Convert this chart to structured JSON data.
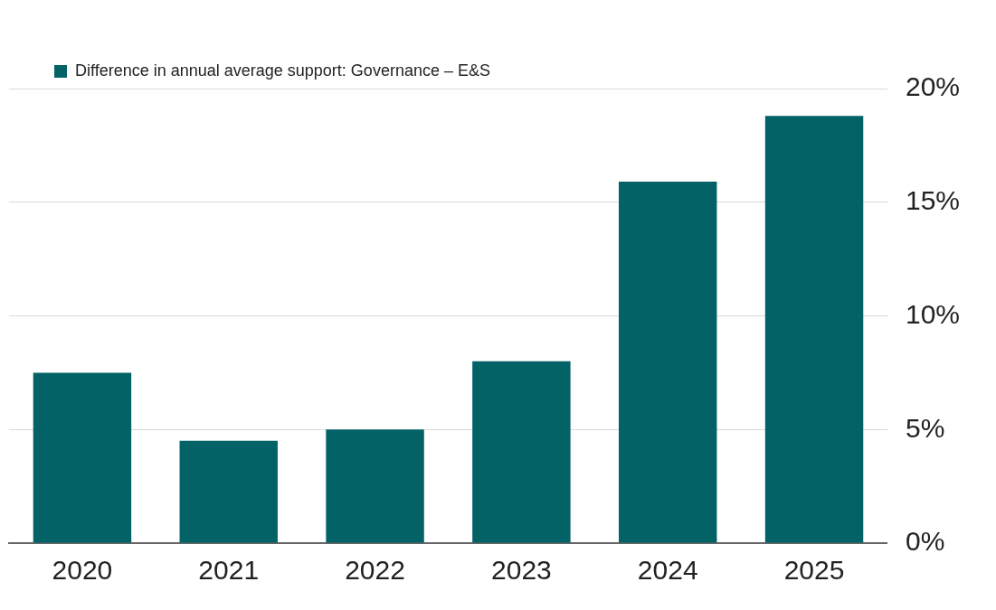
{
  "chart_data": {
    "type": "bar",
    "categories": [
      "2020",
      "2021",
      "2022",
      "2023",
      "2024",
      "2025"
    ],
    "series": [
      {
        "name": "Difference in annual average support: Governance – E&S",
        "color": "#026266",
        "values": [
          7.5,
          4.5,
          5.0,
          8.0,
          15.9,
          18.8
        ]
      }
    ],
    "ylim": [
      0,
      20
    ],
    "yticks": [
      {
        "value": 0,
        "label": "0%"
      },
      {
        "value": 5,
        "label": "5%"
      },
      {
        "value": 10,
        "label": "10%"
      },
      {
        "value": 15,
        "label": "15%"
      },
      {
        "value": 20,
        "label": "20%"
      }
    ],
    "grid": "y",
    "legend": "top left"
  }
}
